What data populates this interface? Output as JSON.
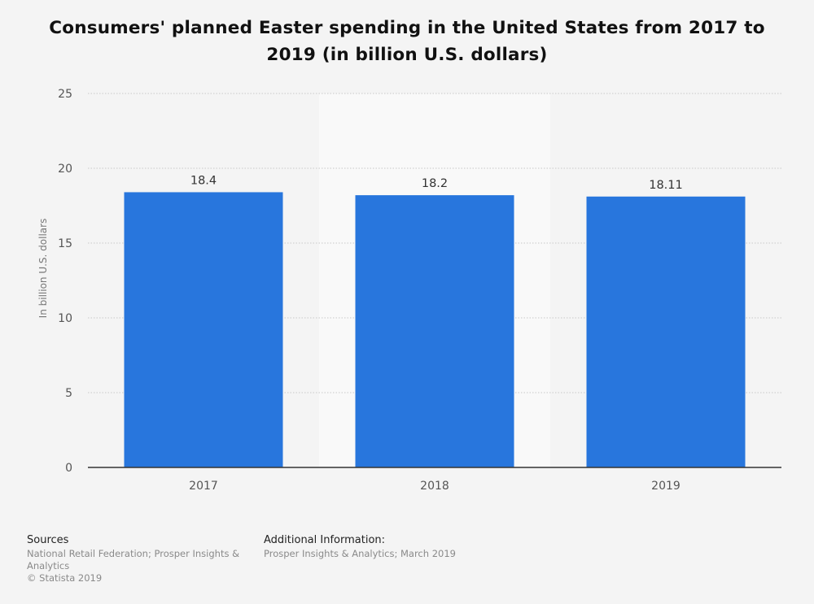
{
  "chart_data": {
    "type": "bar",
    "title": "Consumers' planned Easter spending in the United States from 2017 to 2019 (in billion U.S. dollars)",
    "ylabel": "In billion U.S. dollars",
    "xlabel": "",
    "categories": [
      "2017",
      "2018",
      "2019"
    ],
    "values": [
      18.4,
      18.2,
      18.11
    ],
    "value_labels": [
      "18.4",
      "18.2",
      "18.11"
    ],
    "ylim": [
      0,
      25
    ],
    "yticks": [
      0,
      5,
      10,
      15,
      20,
      25
    ],
    "ytick_labels": [
      "0",
      "5",
      "10",
      "15",
      "20",
      "25"
    ],
    "grid": true,
    "highlighted_category": "2018",
    "colors": {
      "bar": "#2876dd",
      "highlight_band": "#f9f9f9",
      "grid": "#c8c8c8",
      "axis": "#333333",
      "tick_label": "#555555",
      "value_label": "#333333"
    }
  },
  "footer": {
    "sources_heading": "Sources",
    "sources_line1": "National Retail Federation; Prosper Insights &",
    "sources_line2": "Analytics",
    "copyright": "© Statista 2019",
    "additional_heading": "Additional Information:",
    "additional_text": "Prosper Insights & Analytics; March 2019"
  }
}
